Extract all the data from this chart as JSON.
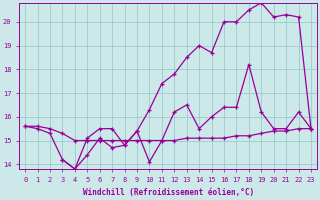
{
  "xlabel": "Windchill (Refroidissement éolien,°C)",
  "bg_color": "#cce8e8",
  "line_color": "#990099",
  "grid_color": "#99cccc",
  "xlim": [
    -0.5,
    23.5
  ],
  "ylim": [
    13.8,
    20.8
  ],
  "xticks": [
    0,
    1,
    2,
    3,
    4,
    5,
    6,
    7,
    8,
    9,
    10,
    11,
    12,
    13,
    14,
    15,
    16,
    17,
    18,
    19,
    20,
    21,
    22,
    23
  ],
  "yticks": [
    14,
    15,
    16,
    17,
    18,
    19,
    20
  ],
  "series": [
    {
      "x": [
        0,
        1,
        2,
        3,
        4,
        5,
        6,
        7,
        8,
        9,
        10,
        11,
        12,
        13,
        14,
        15,
        16,
        17,
        18,
        19,
        20,
        21,
        22,
        23
      ],
      "y": [
        15.6,
        15.6,
        15.5,
        15.3,
        15.0,
        15.0,
        15.0,
        15.0,
        15.0,
        15.0,
        15.0,
        15.0,
        15.0,
        15.1,
        15.1,
        15.1,
        15.1,
        15.2,
        15.2,
        15.3,
        15.4,
        15.4,
        15.5,
        15.5
      ]
    },
    {
      "x": [
        0,
        1,
        2,
        3,
        4,
        5,
        6,
        7,
        8,
        9,
        10,
        11,
        12,
        13,
        14,
        15,
        16,
        17,
        18,
        19,
        20,
        21,
        22,
        23
      ],
      "y": [
        15.6,
        15.5,
        15.3,
        14.2,
        13.8,
        14.4,
        15.1,
        14.7,
        14.8,
        15.4,
        14.1,
        15.0,
        16.2,
        16.5,
        15.5,
        16.0,
        16.4,
        16.4,
        18.2,
        16.2,
        15.5,
        15.5,
        16.2,
        15.5
      ]
    },
    {
      "x": [
        3,
        4,
        5,
        6,
        7,
        8,
        9,
        10,
        11,
        12,
        13,
        14,
        15,
        16,
        17,
        18,
        19,
        20,
        21,
        22,
        23
      ],
      "y": [
        14.2,
        13.8,
        15.1,
        15.5,
        15.5,
        14.8,
        15.4,
        16.3,
        17.4,
        17.8,
        18.5,
        19.0,
        18.7,
        20.0,
        20.0,
        20.5,
        20.8,
        20.2,
        20.3,
        20.2,
        15.5
      ]
    }
  ]
}
